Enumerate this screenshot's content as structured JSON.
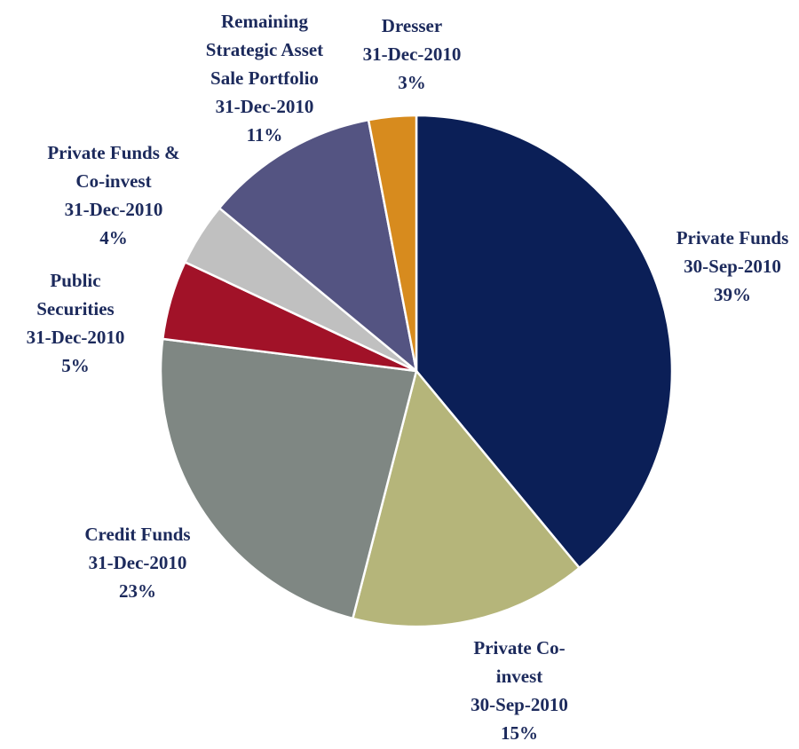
{
  "chart_data": {
    "type": "pie",
    "categories": [
      "Private Funds",
      "Private Co-\ninvest",
      "Credit Funds",
      "Public\nSecurities",
      "Private Funds &\nCo-invest",
      "Remaining\nStrategic Asset\nSale Portfolio",
      "Dresser"
    ],
    "as_of": [
      "30-Sep-2010",
      "30-Sep-2010",
      "31-Dec-2010",
      "31-Dec-2010",
      "31-Dec-2010",
      "31-Dec-2010",
      "31-Dec-2010"
    ],
    "values": [
      39,
      15,
      23,
      5,
      4,
      11,
      3
    ],
    "value_labels": [
      "39%",
      "15%",
      "23%",
      "5%",
      "4%",
      "11%",
      "3%"
    ],
    "colors": [
      "#0b1f57",
      "#b5b57a",
      "#7f8783",
      "#a11228",
      "#c0c0c0",
      "#545482",
      "#d78b1e"
    ]
  }
}
